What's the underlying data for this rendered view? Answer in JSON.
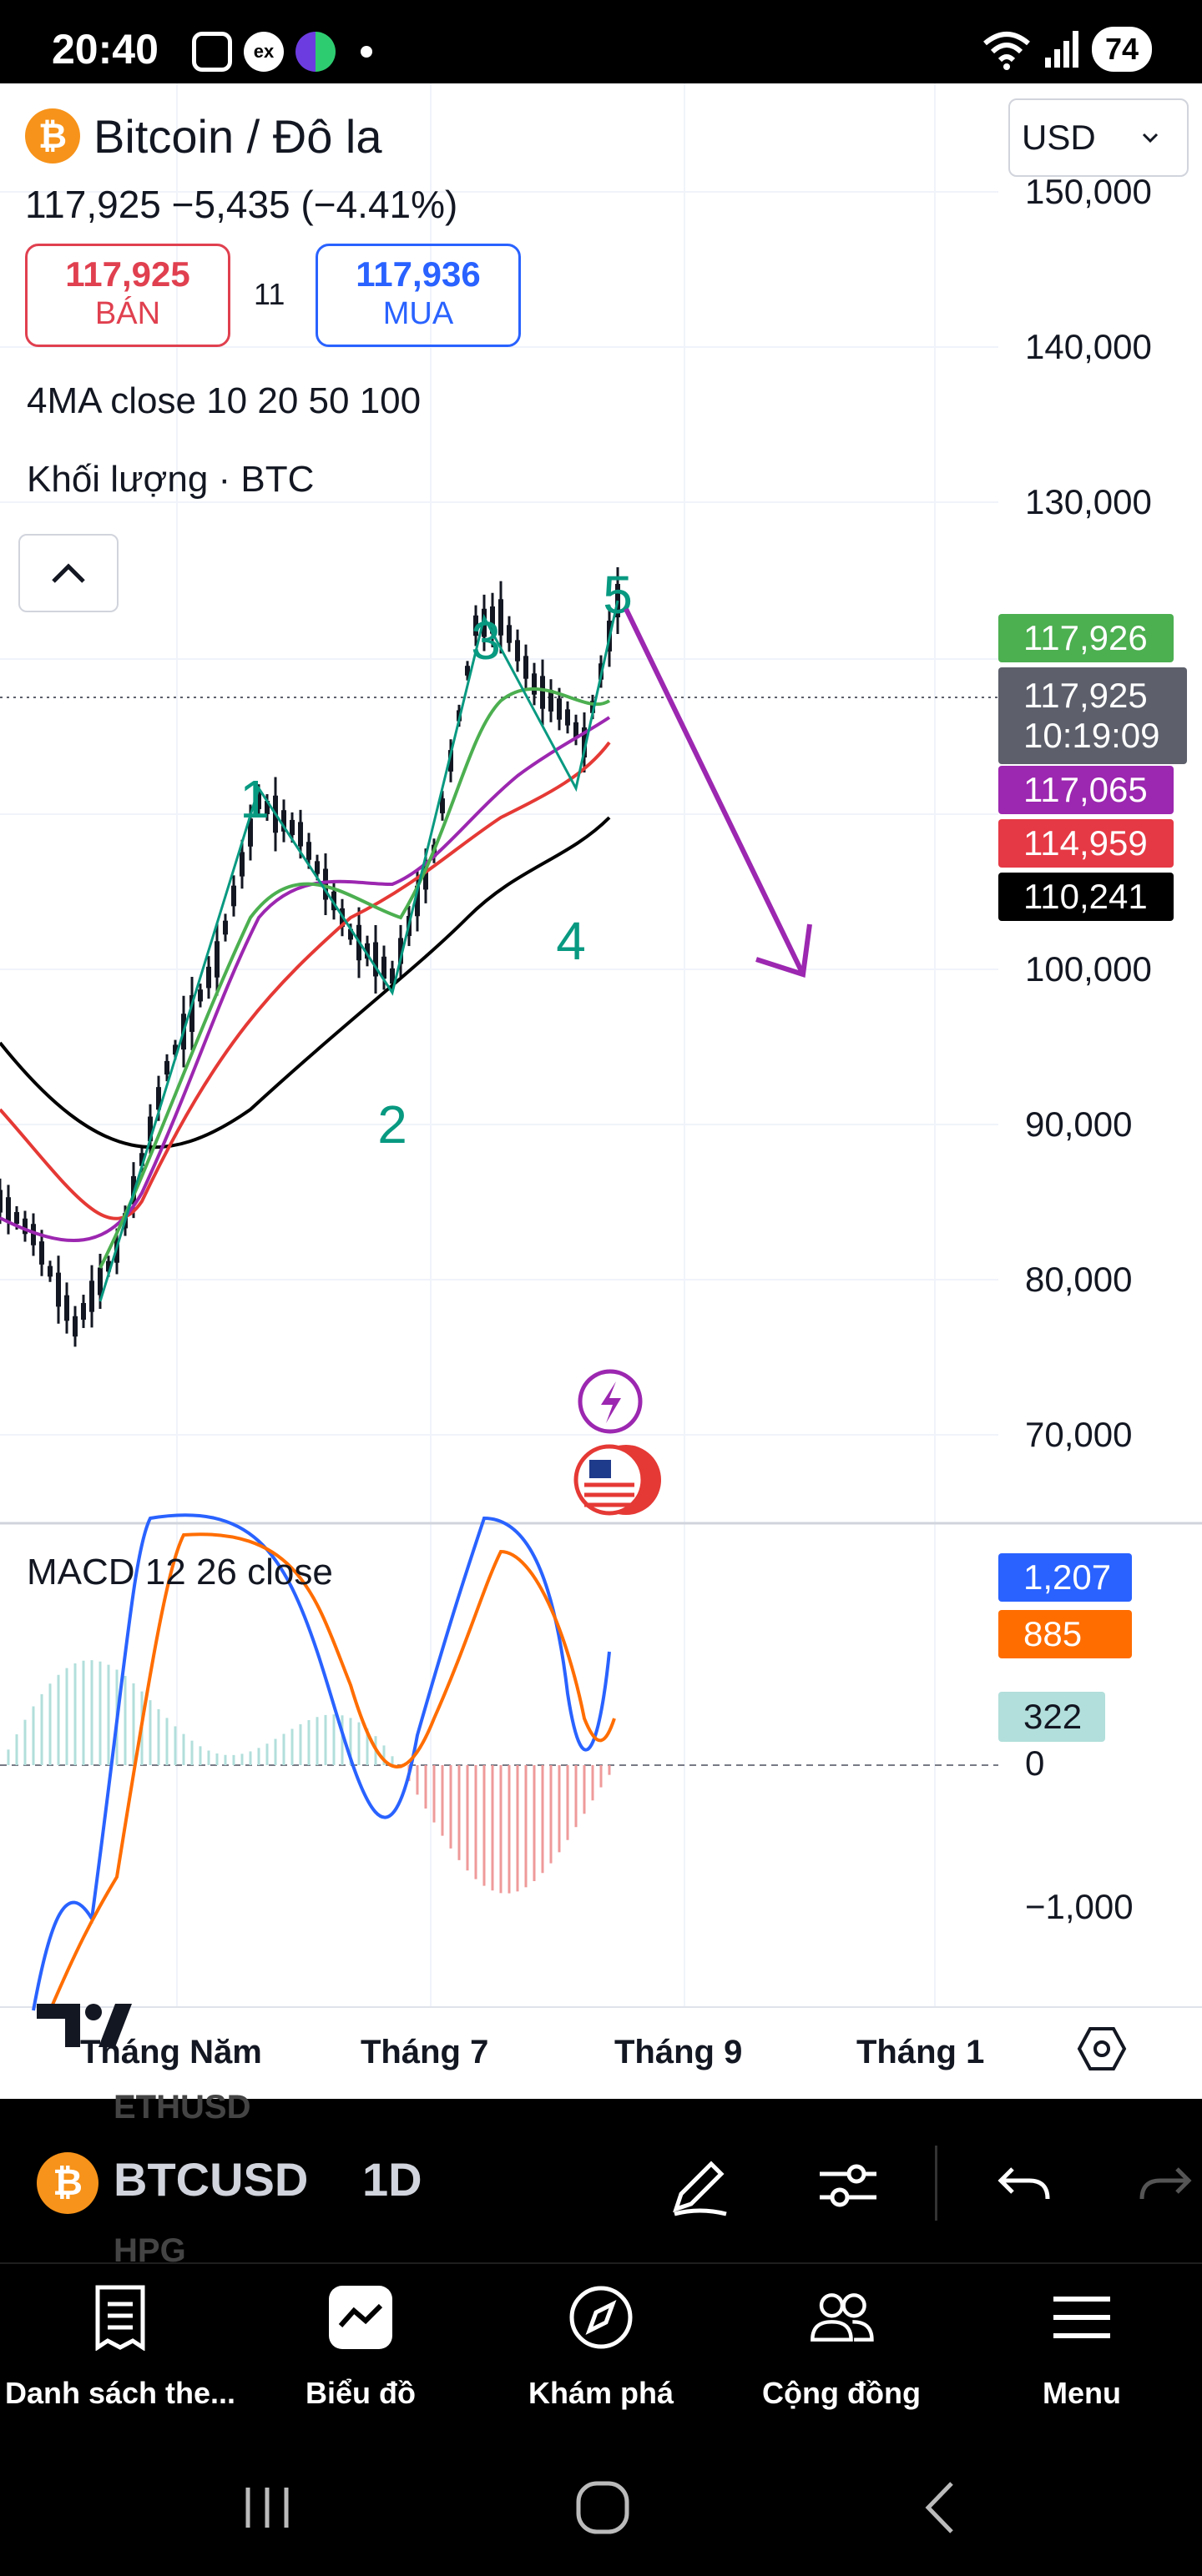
{
  "status_bar": {
    "time": "20:40",
    "notif_ex": "ex",
    "battery": "74",
    "icons": [
      "screen-record-icon",
      "ex-app-icon",
      "green-app-icon",
      "dot-icon",
      "wifi-icon",
      "signal-icon"
    ]
  },
  "header": {
    "title": "Bitcoin / Đô la",
    "price_line": "117,925  −5,435 (−4.41%)",
    "sell_price": "117,925",
    "sell_label": "BÁN",
    "spread": "11",
    "buy_price": "117,936",
    "buy_label": "MUA",
    "ma_label": "4MA close 10 20 50 100",
    "volume_label": "Khối lượng · BTC",
    "currency": "USD"
  },
  "price_axis": {
    "labels": [
      "150,000",
      "140,000",
      "130,000",
      "100,000",
      "90,000",
      "80,000",
      "70,000"
    ]
  },
  "price_tags": {
    "ma10": "117,926",
    "last_price": "117,925",
    "countdown": "10:19:09",
    "ma20": "117,065",
    "ma50": "114,959",
    "ma100": "110,241"
  },
  "wave_labels": [
    "1",
    "2",
    "3",
    "4",
    "5"
  ],
  "macd": {
    "title": "MACD 12 26 close",
    "macd_value": "1,207",
    "signal_value": "885",
    "hist_value": "322",
    "zero_label": "0",
    "low_label": "−1,000"
  },
  "time_axis": {
    "labels": [
      "Tháng Năm",
      "Tháng 7",
      "Tháng 9",
      "Tháng 1"
    ]
  },
  "toolbar": {
    "symbol": "BTCUSD",
    "interval": "1D",
    "ghost_above": "ETHUSD",
    "ghost_below": "HPG"
  },
  "bottom_nav": {
    "items": [
      {
        "label": "Danh sách the...",
        "icon": "watchlist-icon"
      },
      {
        "label": "Biểu đồ",
        "icon": "chart-icon"
      },
      {
        "label": "Khám phá",
        "icon": "compass-icon"
      },
      {
        "label": "Cộng đồng",
        "icon": "community-icon"
      },
      {
        "label": "Menu",
        "icon": "menu-icon"
      }
    ]
  },
  "colors": {
    "green": "#4caf50",
    "red": "#e53935",
    "purple": "#9c27b0",
    "teal_label": "#089981",
    "arrow": "#9c27b0",
    "macd_line": "#2962ff",
    "signal_line": "#ff6d00"
  }
}
